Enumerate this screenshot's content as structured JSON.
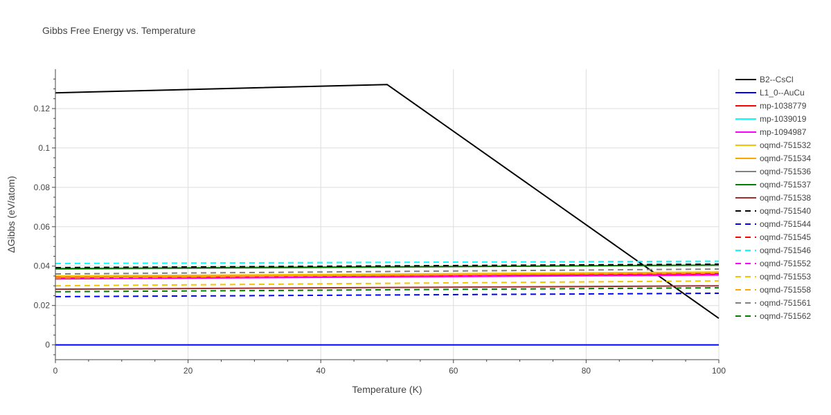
{
  "chart_data": {
    "type": "line",
    "title": "Gibbs Free Energy vs. Temperature",
    "xlabel": "Temperature (K)",
    "ylabel": "ΔGibbs (eV/atom)",
    "xlim": [
      0,
      100
    ],
    "ylim": [
      -0.0075,
      0.14
    ],
    "xticks": [
      0,
      20,
      40,
      60,
      80,
      100
    ],
    "xtick_labels": [
      "0",
      "20",
      "40",
      "60",
      "80",
      "100"
    ],
    "yticks": [
      0,
      0.02,
      0.04,
      0.06,
      0.08,
      0.1,
      0.12
    ],
    "ytick_labels": [
      "0",
      "0.02",
      "0.04",
      "0.06",
      "0.08",
      "0.1",
      "0.12"
    ],
    "grid": true,
    "legend": "right",
    "series": [
      {
        "name": "B2--CsCl",
        "color": "#000000",
        "dash": "solid",
        "x": [
          0,
          50,
          100
        ],
        "y": [
          0.128,
          0.1322,
          0.0135
        ]
      },
      {
        "name": "L1_0--AuCu",
        "color": "#0000ff",
        "dash": "solid",
        "x": [
          0,
          100
        ],
        "y": [
          0.0,
          0.0
        ]
      },
      {
        "name": "mp-1038779",
        "color": "#ff0000",
        "dash": "solid",
        "x": [
          0,
          100
        ],
        "y": [
          0.034,
          0.036
        ]
      },
      {
        "name": "mp-1039019",
        "color": "#00ffff",
        "dash": "solid",
        "x": [
          0,
          100
        ],
        "y": [
          0.0345,
          0.0365
        ]
      },
      {
        "name": "mp-1094987",
        "color": "#ff00ff",
        "dash": "solid",
        "x": [
          0,
          100
        ],
        "y": [
          0.0335,
          0.0355
        ]
      },
      {
        "name": "oqmd-751532",
        "color": "#f5c400",
        "dash": "solid",
        "x": [
          0,
          100
        ],
        "y": [
          0.035,
          0.037
        ]
      },
      {
        "name": "oqmd-751534",
        "color": "#ffa500",
        "dash": "solid",
        "x": [
          0,
          100
        ],
        "y": [
          0.0345,
          0.0365
        ]
      },
      {
        "name": "oqmd-751536",
        "color": "#808080",
        "dash": "solid",
        "x": [
          0,
          100
        ],
        "y": [
          0.0385,
          0.0405
        ]
      },
      {
        "name": "oqmd-751537",
        "color": "#008000",
        "dash": "solid",
        "x": [
          0,
          100
        ],
        "y": [
          0.0388,
          0.0405
        ]
      },
      {
        "name": "oqmd-751538",
        "color": "#a52a2a",
        "dash": "solid",
        "x": [
          0,
          100
        ],
        "y": [
          0.0283,
          0.03
        ]
      },
      {
        "name": "oqmd-751540",
        "color": "#000000",
        "dash": "dash",
        "x": [
          0,
          100
        ],
        "y": [
          0.0392,
          0.041
        ]
      },
      {
        "name": "oqmd-751544",
        "color": "#0000ff",
        "dash": "dash",
        "x": [
          0,
          100
        ],
        "y": [
          0.0245,
          0.0262
        ]
      },
      {
        "name": "oqmd-751545",
        "color": "#ff0000",
        "dash": "dash",
        "x": [
          0,
          100
        ],
        "y": [
          0.0342,
          0.0362
        ]
      },
      {
        "name": "oqmd-751546",
        "color": "#00ffff",
        "dash": "dash",
        "x": [
          0,
          100
        ],
        "y": [
          0.0413,
          0.0425
        ]
      },
      {
        "name": "oqmd-751552",
        "color": "#ff00ff",
        "dash": "dash",
        "x": [
          0,
          100
        ],
        "y": [
          0.0337,
          0.0357
        ]
      },
      {
        "name": "oqmd-751553",
        "color": "#f5c400",
        "dash": "dash",
        "x": [
          0,
          100
        ],
        "y": [
          0.03,
          0.0325
        ]
      },
      {
        "name": "oqmd-751558",
        "color": "#ffa500",
        "dash": "dash",
        "x": [
          0,
          100
        ],
        "y": [
          0.034,
          0.0368
        ]
      },
      {
        "name": "oqmd-751561",
        "color": "#808080",
        "dash": "dash",
        "x": [
          0,
          100
        ],
        "y": [
          0.036,
          0.0385
        ]
      },
      {
        "name": "oqmd-751562",
        "color": "#008000",
        "dash": "dash",
        "x": [
          0,
          100
        ],
        "y": [
          0.027,
          0.029
        ]
      }
    ]
  }
}
